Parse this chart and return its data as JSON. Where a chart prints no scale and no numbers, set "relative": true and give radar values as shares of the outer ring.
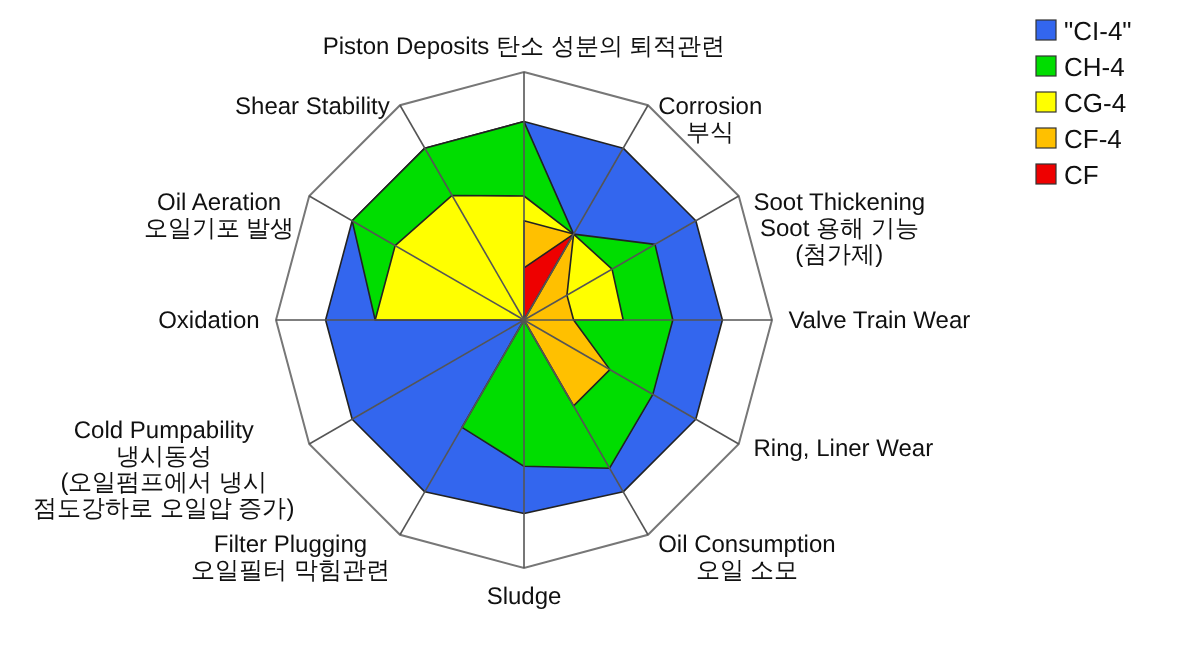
{
  "chart_data": {
    "type": "radar",
    "relative": true,
    "legend": "top right",
    "marker": "square",
    "categories": [
      "Piston Deposits 탄소 성분의 퇴적관련",
      "Corrosion\n부식",
      "Soot Thickening\nSoot 용해 기능\n(첨가제)",
      "Valve Train Wear",
      "Ring, Liner Wear",
      "Oil Consumption\n오일 소모",
      "Sludge",
      "Filter Plugging\n오일필터 막힘관련",
      "Cold Pumpability\n냉시동성\n(오일펌프에서 냉시\n점도강하로 오일압 증가)",
      "Oxidation",
      "Oil Aeration\n오일기포 발생",
      "Shear Stability"
    ],
    "series": [
      {
        "name": "\"CI-4\"",
        "color": "#3366ee",
        "values": [
          0.8,
          0.8,
          0.8,
          0.8,
          0.8,
          0.8,
          0.78,
          0.8,
          0.8,
          0.8,
          0.8,
          0.8
        ]
      },
      {
        "name": "CH-4",
        "color": "#00dd00",
        "values": [
          0.8,
          0.4,
          0.61,
          0.6,
          0.6,
          0.69,
          0.59,
          0.5,
          0,
          0.6,
          0.8,
          0.8
        ]
      },
      {
        "name": "CG-4",
        "color": "#ffff00",
        "values": [
          0.5,
          0.4,
          0.41,
          0.4,
          0,
          0,
          0,
          0,
          0,
          0.6,
          0.6,
          0.58
        ]
      },
      {
        "name": "CF-4",
        "color": "#ffc000",
        "values": [
          0.4,
          0.4,
          0.2,
          0.2,
          0.4,
          0.4,
          0,
          0,
          0,
          0,
          0,
          0
        ]
      },
      {
        "name": "CF",
        "color": "#ee0000",
        "values": [
          0.21,
          0.4,
          0,
          0,
          0,
          0,
          0,
          0,
          0,
          0,
          0,
          0
        ]
      }
    ]
  }
}
